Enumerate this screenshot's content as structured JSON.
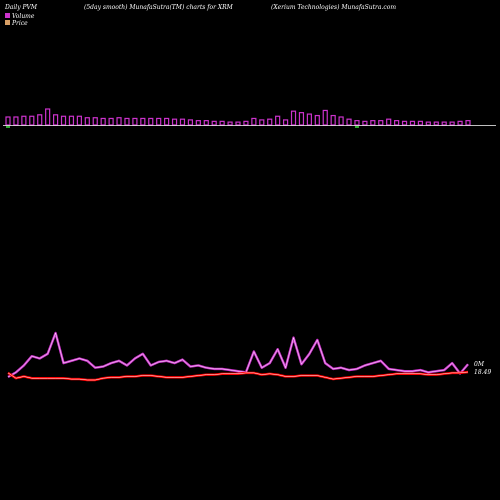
{
  "header": {
    "left": "Daily PVM",
    "center": "(5day smooth) MunafaSutra(TM) charts for XRM",
    "right": "(Xerium Technologies) MunafaSutra.com"
  },
  "legend": {
    "volume": "Volume",
    "price": "Price"
  },
  "right_labels": {
    "volume_value": "0M",
    "price_value": "18.49"
  },
  "colors": {
    "background": "#000000",
    "volume_bar": "#cc33cc",
    "volume_bar_down": "#33aa33",
    "volume_line_outer": "#cc33cc",
    "volume_line_inner": "#ffffff",
    "price_line_outer": "#ff0000",
    "price_line_inner": "#ffffff",
    "baseline": "#ffffff"
  },
  "chart_data": {
    "type": "bar",
    "series": [
      {
        "name": "Volume",
        "values": [
          0.55,
          0.55,
          0.6,
          0.6,
          0.7,
          1.1,
          0.7,
          0.6,
          0.6,
          0.6,
          0.5,
          0.5,
          0.45,
          0.45,
          0.5,
          0.45,
          0.45,
          0.45,
          0.45,
          0.45,
          0.45,
          0.4,
          0.4,
          0.35,
          0.3,
          0.3,
          0.25,
          0.25,
          0.2,
          0.2,
          0.25,
          0.45,
          0.35,
          0.4,
          0.6,
          0.35,
          0.95,
          0.85,
          0.75,
          0.65,
          1.0,
          0.65,
          0.55,
          0.4,
          0.3,
          0.25,
          0.3,
          0.3,
          0.4,
          0.3,
          0.25,
          0.25,
          0.25,
          0.2,
          0.2,
          0.2,
          0.2,
          0.25,
          0.3
        ]
      },
      {
        "name": "Price",
        "values": [
          19.0,
          18.7,
          18.8,
          18.7,
          18.7,
          18.7,
          18.7,
          18.7,
          18.65,
          18.65,
          18.6,
          18.6,
          18.7,
          18.75,
          18.75,
          18.8,
          18.8,
          18.85,
          18.85,
          18.8,
          18.75,
          18.75,
          18.75,
          18.8,
          18.85,
          18.9,
          18.9,
          18.95,
          18.95,
          18.95,
          19.0,
          19.0,
          18.9,
          18.95,
          18.9,
          18.8,
          18.8,
          18.85,
          18.85,
          18.85,
          18.75,
          18.65,
          18.7,
          18.75,
          18.8,
          18.8,
          18.8,
          18.85,
          18.9,
          18.95,
          18.95,
          18.95,
          18.95,
          18.9,
          18.9,
          18.95,
          19.0,
          19.0,
          19.05
        ]
      }
    ],
    "volume_line": [
      0.3,
      0.5,
      0.8,
      1.2,
      1.1,
      1.3,
      2.2,
      0.9,
      1.0,
      1.1,
      1.0,
      0.7,
      0.75,
      0.9,
      1.0,
      0.8,
      1.1,
      1.3,
      0.8,
      0.95,
      1.0,
      0.9,
      1.05,
      0.75,
      0.8,
      0.7,
      0.65,
      0.65,
      0.6,
      0.55,
      0.5,
      1.4,
      0.7,
      0.9,
      1.5,
      0.7,
      2.0,
      0.85,
      1.3,
      1.9,
      0.9,
      0.65,
      0.7,
      0.6,
      0.65,
      0.8,
      0.9,
      1.0,
      0.65,
      0.6,
      0.55,
      0.55,
      0.6,
      0.5,
      0.55,
      0.6,
      0.9,
      0.45,
      0.85
    ],
    "legend_placement": "top-left",
    "grid": false
  }
}
